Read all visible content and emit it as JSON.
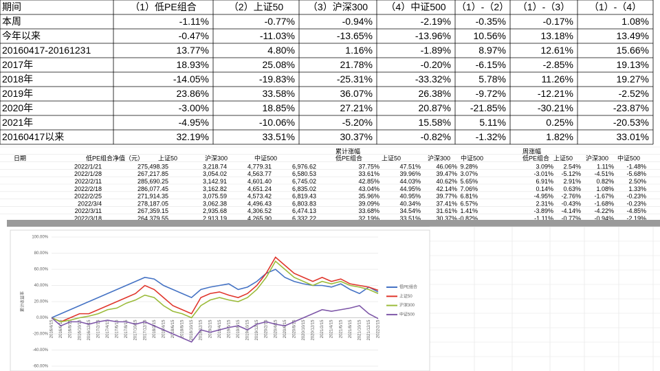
{
  "table1": {
    "headers": [
      "期间",
      "（1）低PE组合",
      "（2）上证50",
      "（3）沪深300",
      "（4）中证500",
      "（1）-（2）",
      "（1）-（3）",
      "（1）-（4）"
    ],
    "rows": [
      [
        "本周",
        "-1.11%",
        "-0.77%",
        "-0.94%",
        "-2.19%",
        "-0.35%",
        "-0.17%",
        "1.08%"
      ],
      [
        "今年以来",
        "-0.47%",
        "-11.03%",
        "-13.65%",
        "-13.96%",
        "10.56%",
        "13.18%",
        "13.49%"
      ],
      [
        "20160417-20161231",
        "13.77%",
        "4.80%",
        "1.16%",
        "-1.89%",
        "8.97%",
        "12.61%",
        "15.66%"
      ],
      [
        "2017年",
        "18.93%",
        "25.08%",
        "21.78%",
        "-0.20%",
        "-6.15%",
        "-2.85%",
        "19.13%"
      ],
      [
        "2018年",
        "-14.05%",
        "-19.83%",
        "-25.31%",
        "-33.32%",
        "5.78%",
        "11.26%",
        "19.27%"
      ],
      [
        "2019年",
        "23.86%",
        "33.58%",
        "36.07%",
        "26.38%",
        "-9.72%",
        "-12.21%",
        "-2.52%"
      ],
      [
        "2020年",
        "-3.00%",
        "18.85%",
        "27.21%",
        "20.87%",
        "-21.85%",
        "-30.21%",
        "-23.87%"
      ],
      [
        "2021年",
        "-4.95%",
        "-10.06%",
        "-5.20%",
        "15.58%",
        "5.11%",
        "0.25%",
        "-20.53%"
      ],
      [
        "20160417以来",
        "32.19%",
        "33.51%",
        "30.37%",
        "-0.82%",
        "-1.32%",
        "1.82%",
        "33.01%"
      ]
    ]
  },
  "table2": {
    "group_headers": [
      "累计涨幅",
      "周涨幅"
    ],
    "headers": [
      "日期",
      "低PE组合净值（元）",
      "上证50",
      "沪深300",
      "中证500",
      "低PE组合",
      "上证50",
      "沪深300",
      "中证500",
      "低PE组合",
      "上证50",
      "沪深300",
      "中证500"
    ],
    "rows": [
      [
        "2022/1/21",
        "275,498.35",
        "3,218.74",
        "4,779.31",
        "6,976.62",
        "37.75%",
        "47.51%",
        "46.06%",
        "9.28%",
        "3.09%",
        "2.54%",
        "1.11%",
        "-1.48%"
      ],
      [
        "2022/1/28",
        "267,217.85",
        "3,054.02",
        "4,563.77",
        "6,580.53",
        "33.61%",
        "39.96%",
        "39.47%",
        "3.07%",
        "-3.01%",
        "-5.12%",
        "-4.51%",
        "-5.68%"
      ],
      [
        "2022/2/11",
        "285,690.25",
        "3,142.91",
        "4,601.40",
        "6,745.02",
        "42.85%",
        "44.03%",
        "40.62%",
        "5.65%",
        "6.91%",
        "2.91%",
        "0.82%",
        "2.50%"
      ],
      [
        "2022/2/18",
        "286,077.45",
        "3,162.82",
        "4,651.24",
        "6,835.02",
        "43.04%",
        "44.95%",
        "42.14%",
        "7.06%",
        "0.14%",
        "0.63%",
        "1.08%",
        "1.33%"
      ],
      [
        "2022/2/25",
        "271,914.35",
        "3,075.59",
        "4,573.42",
        "6,819.43",
        "35.96%",
        "40.95%",
        "39.77%",
        "6.81%",
        "-4.95%",
        "-2.76%",
        "-1.67%",
        "-0.23%"
      ],
      [
        "2022/3/4",
        "278,187.05",
        "3,062.38",
        "4,496.43",
        "6,803.83",
        "39.09%",
        "40.34%",
        "37.41%",
        "6.57%",
        "2.31%",
        "-0.43%",
        "-1.68%",
        "-0.23%"
      ],
      [
        "2022/3/11",
        "267,359.15",
        "2,935.68",
        "4,306.52",
        "6,474.13",
        "33.68%",
        "34.54%",
        "31.61%",
        "1.41%",
        "-3.89%",
        "-4.14%",
        "-4.22%",
        "-4.85%"
      ],
      [
        "2022/3/18",
        "264,379.55",
        "2,913.19",
        "4,265.90",
        "6,332.22",
        "32.19%",
        "33.51%",
        "30.37%",
        "-0.82%",
        "-1.11%",
        "-0.77%",
        "-0.94%",
        "-2.19%"
      ]
    ]
  },
  "chart_data": {
    "type": "line",
    "y_label": "累计收益率",
    "categories": [
      "2016/4/15",
      "2016/6/15",
      "2016/8/15",
      "2016/10/15",
      "2016/12/15",
      "2017/2/15",
      "2017/4/15",
      "2017/6/15",
      "2017/8/15",
      "2017/10/15",
      "2017/12/15",
      "2018/2/15",
      "2018/4/15",
      "2018/6/15",
      "2018/8/15",
      "2018/10/15",
      "2018/12/15",
      "2019/2/15",
      "2019/4/15",
      "2019/6/15",
      "2019/8/15",
      "2019/10/15",
      "2019/12/15",
      "2020/2/15",
      "2020/4/15",
      "2020/6/15",
      "2020/8/15",
      "2020/10/15",
      "2020/12/15",
      "2021/2/15",
      "2021/4/15",
      "2021/6/15",
      "2021/8/15",
      "2021/10/15",
      "2021/12/15",
      "2022/2/15"
    ],
    "series": [
      {
        "name": "低PE组合",
        "color": "#4472c4",
        "values": [
          0,
          5,
          10,
          15,
          20,
          25,
          30,
          35,
          40,
          45,
          50,
          48,
          40,
          35,
          30,
          25,
          35,
          38,
          40,
          42,
          35,
          38,
          45,
          55,
          60,
          50,
          45,
          42,
          40,
          40,
          38,
          42,
          35,
          30,
          38,
          32
        ]
      },
      {
        "name": "上证50",
        "color": "#e0352b",
        "values": [
          0,
          -5,
          0,
          5,
          5,
          10,
          15,
          20,
          25,
          30,
          40,
          35,
          25,
          15,
          10,
          5,
          25,
          30,
          32,
          28,
          25,
          30,
          40,
          55,
          75,
          65,
          55,
          50,
          45,
          50,
          45,
          48,
          42,
          40,
          38,
          34
        ]
      },
      {
        "name": "沪深300",
        "color": "#9bbb3a",
        "values": [
          0,
          -5,
          -3,
          0,
          2,
          5,
          10,
          12,
          18,
          22,
          28,
          25,
          15,
          8,
          5,
          0,
          15,
          22,
          25,
          22,
          20,
          25,
          35,
          50,
          70,
          60,
          50,
          45,
          40,
          45,
          42,
          45,
          40,
          38,
          35,
          30
        ]
      },
      {
        "name": "中证500",
        "color": "#7e57a8",
        "values": [
          0,
          -10,
          -5,
          -5,
          -8,
          -5,
          -3,
          -5,
          -5,
          -8,
          -5,
          -10,
          -15,
          -20,
          -25,
          -30,
          -15,
          -18,
          -15,
          -12,
          -10,
          -15,
          -8,
          -5,
          -8,
          -10,
          -5,
          0,
          5,
          10,
          8,
          10,
          12,
          15,
          5,
          -1
        ]
      }
    ],
    "ylim": [
      -60,
      100
    ],
    "yticks": [
      {
        "value": -60,
        "label": "-60.00%"
      },
      {
        "value": -40,
        "label": "-40.00%"
      },
      {
        "value": -20,
        "label": "-20.00%"
      },
      {
        "value": 0,
        "label": "0.00%"
      },
      {
        "value": 20,
        "label": "20.00%"
      },
      {
        "value": 40,
        "label": "40.00%"
      },
      {
        "value": 60,
        "label": "60.00%"
      },
      {
        "value": 80,
        "label": "80.00%"
      },
      {
        "value": 100,
        "label": "100.00%"
      }
    ],
    "grid": true,
    "legend": "right"
  }
}
